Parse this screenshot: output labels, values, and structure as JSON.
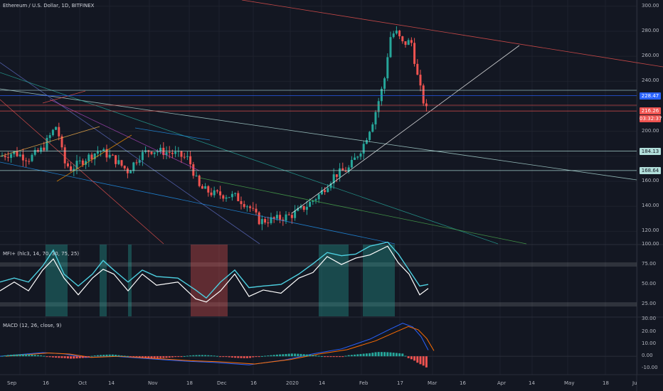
{
  "title": "Ethereum / U.S. Dollar, 1D, BITFINEX",
  "mfi_label": "MFI+ (hlc3, 14, 70, 30, 75, 25)",
  "macd_label": "MACD (12, 26, close, 9)",
  "price_axis": [
    "300.00",
    "280.00",
    "260.00",
    "240.00",
    "200.00",
    "160.00",
    "140.00",
    "120.00"
  ],
  "price_badges": [
    {
      "label": "228.47",
      "bg": "#2962ff",
      "value": 228.47
    },
    {
      "label": "216.26",
      "bg": "#ef5350",
      "value": 216.26
    },
    {
      "label": "03:32:37",
      "bg": "#ef5350",
      "value": 216.26
    },
    {
      "label": "184.13",
      "bg": "#b2dfdb",
      "value": 184.13
    },
    {
      "label": "168.64",
      "bg": "#b2dfdb",
      "value": 168.64
    }
  ],
  "mfi_axis": [
    "100.00",
    "75.00",
    "50.00",
    "25.00"
  ],
  "macd_axis": [
    "30.00",
    "20.00",
    "10.00",
    "0.00",
    "-10.00"
  ],
  "x_axis": [
    "Sep",
    "16",
    "Oct",
    "14",
    "Nov",
    "18",
    "Dec",
    "16",
    "2020",
    "14",
    "Feb",
    "17",
    "Mar",
    "16",
    "Apr",
    "14",
    "May",
    "18",
    "Ju"
  ],
  "colors": {
    "bg": "#131722",
    "up": "#26a69a",
    "down": "#ef5350",
    "grid": "#1e222d",
    "text": "#b2b5be"
  },
  "chart_data": [
    {
      "type": "candlestick",
      "title": "Ethereum / U.S. Dollar, 1D, BITFINEX",
      "ylim": [
        110,
        305
      ],
      "approx_close_path": [
        {
          "x": "Sep",
          "y": 180
        },
        {
          "x": "16",
          "y": 190
        },
        {
          "x": "late Sep",
          "y": 170
        },
        {
          "x": "Oct",
          "y": 175
        },
        {
          "x": "14",
          "y": 180
        },
        {
          "x": "Nov",
          "y": 185
        },
        {
          "x": "18",
          "y": 175
        },
        {
          "x": "Dec",
          "y": 150
        },
        {
          "x": "16",
          "y": 128
        },
        {
          "x": "2020",
          "y": 133
        },
        {
          "x": "14",
          "y": 165
        },
        {
          "x": "Feb",
          "y": 205
        },
        {
          "x": "17",
          "y": 280
        },
        {
          "x": "Mar",
          "y": 216.26
        }
      ],
      "horizontal_levels": [
        228.47,
        216.26,
        184.13,
        168.64
      ]
    },
    {
      "type": "line",
      "name": "MFI+",
      "ylim": [
        10,
        100
      ],
      "levels": [
        75,
        25
      ]
    },
    {
      "type": "bar",
      "name": "MACD",
      "ylim": [
        -15,
        32
      ]
    }
  ]
}
